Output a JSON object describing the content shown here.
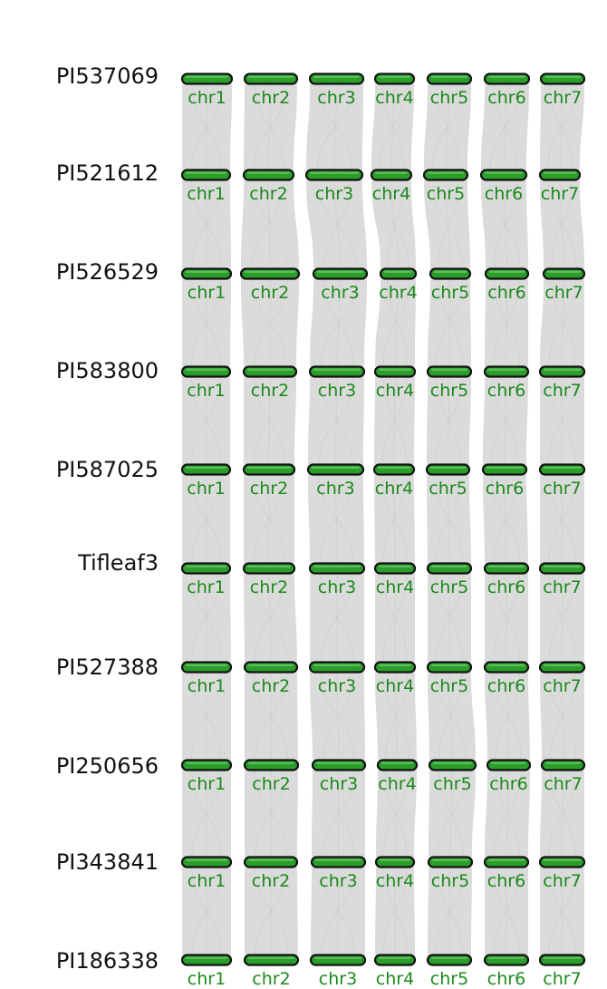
{
  "figure": {
    "colors": {
      "chromosome_fill": "#2a9d2a",
      "chromosome_outline": "#111111",
      "chromosome_label": "#1a8a1a",
      "synteny_ribbon": "#d9d9d9",
      "genome_label": "#111111"
    },
    "genomes": [
      {
        "name": "PI537069",
        "chromosomes": [
          {
            "label": "chr1"
          },
          {
            "label": "chr2"
          },
          {
            "label": "chr3"
          },
          {
            "label": "chr4"
          },
          {
            "label": "chr5"
          },
          {
            "label": "chr6"
          },
          {
            "label": "chr7"
          }
        ]
      },
      {
        "name": "PI521612",
        "chromosomes": [
          {
            "label": "chr1"
          },
          {
            "label": "chr2"
          },
          {
            "label": "chr3"
          },
          {
            "label": "chr4"
          },
          {
            "label": "chr5"
          },
          {
            "label": "chr6"
          },
          {
            "label": "chr7"
          }
        ]
      },
      {
        "name": "PI526529",
        "chromosomes": [
          {
            "label": "chr1"
          },
          {
            "label": "chr2"
          },
          {
            "label": "chr3"
          },
          {
            "label": "chr4"
          },
          {
            "label": "chr5"
          },
          {
            "label": "chr6"
          },
          {
            "label": "chr7"
          }
        ]
      },
      {
        "name": "PI583800",
        "chromosomes": [
          {
            "label": "chr1"
          },
          {
            "label": "chr2"
          },
          {
            "label": "chr3"
          },
          {
            "label": "chr4"
          },
          {
            "label": "chr5"
          },
          {
            "label": "chr6"
          },
          {
            "label": "chr7"
          }
        ]
      },
      {
        "name": "PI587025",
        "chromosomes": [
          {
            "label": "chr1"
          },
          {
            "label": "chr2"
          },
          {
            "label": "chr3"
          },
          {
            "label": "chr4"
          },
          {
            "label": "chr5"
          },
          {
            "label": "chr6"
          },
          {
            "label": "chr7"
          }
        ]
      },
      {
        "name": "Tifleaf3",
        "chromosomes": [
          {
            "label": "chr1"
          },
          {
            "label": "chr2"
          },
          {
            "label": "chr3"
          },
          {
            "label": "chr4"
          },
          {
            "label": "chr5"
          },
          {
            "label": "chr6"
          },
          {
            "label": "chr7"
          }
        ]
      },
      {
        "name": "PI527388",
        "chromosomes": [
          {
            "label": "chr1"
          },
          {
            "label": "chr2"
          },
          {
            "label": "chr3"
          },
          {
            "label": "chr4"
          },
          {
            "label": "chr5"
          },
          {
            "label": "chr6"
          },
          {
            "label": "chr7"
          }
        ]
      },
      {
        "name": "PI250656",
        "chromosomes": [
          {
            "label": "chr1"
          },
          {
            "label": "chr2"
          },
          {
            "label": "chr3"
          },
          {
            "label": "chr4"
          },
          {
            "label": "chr5"
          },
          {
            "label": "chr6"
          },
          {
            "label": "chr7"
          }
        ]
      },
      {
        "name": "PI343841",
        "chromosomes": [
          {
            "label": "chr1"
          },
          {
            "label": "chr2"
          },
          {
            "label": "chr3"
          },
          {
            "label": "chr4"
          },
          {
            "label": "chr5"
          },
          {
            "label": "chr6"
          },
          {
            "label": "chr7"
          }
        ]
      },
      {
        "name": "PI186338",
        "chromosomes": [
          {
            "label": "chr1"
          },
          {
            "label": "chr2"
          },
          {
            "label": "chr3"
          },
          {
            "label": "chr4"
          },
          {
            "label": "chr5"
          },
          {
            "label": "chr6"
          },
          {
            "label": "chr7"
          }
        ]
      }
    ]
  }
}
